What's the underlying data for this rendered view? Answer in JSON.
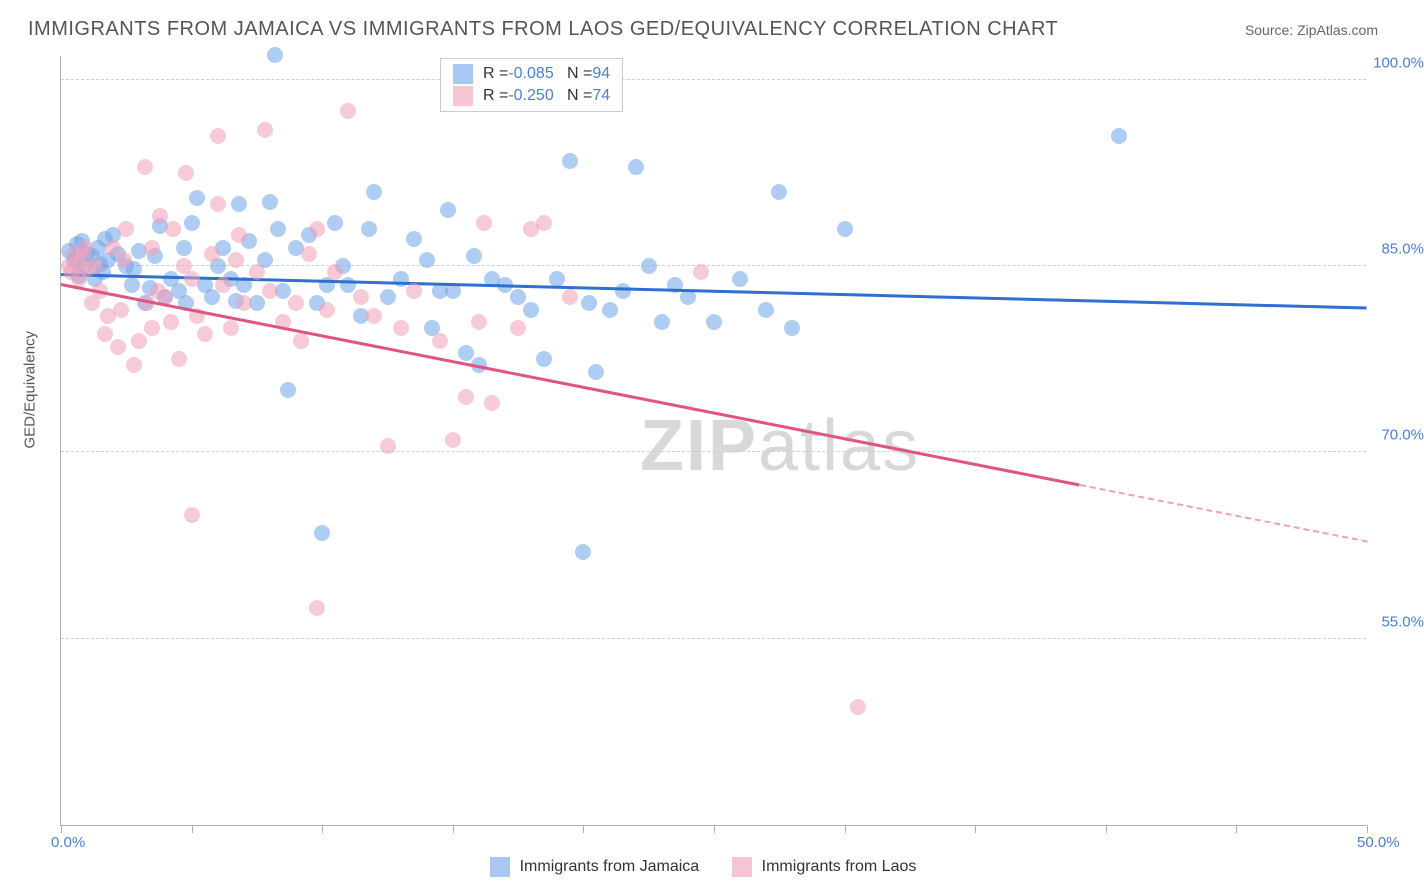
{
  "title": "IMMIGRANTS FROM JAMAICA VS IMMIGRANTS FROM LAOS GED/EQUIVALENCY CORRELATION CHART",
  "source": "Source: ZipAtlas.com",
  "y_axis_label": "GED/Equivalency",
  "watermark": {
    "bold": "ZIP",
    "light": "atlas"
  },
  "chart": {
    "type": "scatter",
    "background_color": "#ffffff",
    "grid_color": "#d0d0d0",
    "axis_color": "#b0b0b0",
    "xlim": [
      0,
      50
    ],
    "ylim": [
      40,
      102
    ],
    "x_tick_labels": [
      {
        "x": 0,
        "label": "0.0%"
      },
      {
        "x": 50,
        "label": "50.0%"
      }
    ],
    "x_ticks": [
      0,
      5,
      10,
      15,
      20,
      25,
      30,
      35,
      40,
      45,
      50
    ],
    "y_ticks": [
      {
        "y": 55,
        "label": "55.0%"
      },
      {
        "y": 70,
        "label": "70.0%"
      },
      {
        "y": 85,
        "label": "85.0%"
      },
      {
        "y": 100,
        "label": "100.0%"
      }
    ],
    "marker_radius": 8,
    "marker_opacity": 0.55,
    "series": [
      {
        "name": "Immigrants from Jamaica",
        "color": "#6fa3e8",
        "line_color": "#2f6fd0",
        "r": "-0.085",
        "n": "94",
        "trend": {
          "x1": 0,
          "y1": 84.5,
          "x2": 50,
          "y2": 81.8,
          "solid_until": 50
        },
        "points": [
          [
            0.3,
            86.2
          ],
          [
            0.5,
            85.5
          ],
          [
            0.6,
            86.8
          ],
          [
            0.7,
            84.2
          ],
          [
            0.8,
            87.0
          ],
          [
            0.9,
            85.0
          ],
          [
            1.0,
            86.0
          ],
          [
            1.2,
            85.8
          ],
          [
            1.3,
            84.0
          ],
          [
            1.4,
            86.5
          ],
          [
            1.5,
            85.2
          ],
          [
            1.6,
            84.5
          ],
          [
            1.7,
            87.2
          ],
          [
            1.8,
            85.5
          ],
          [
            2.0,
            87.5
          ],
          [
            2.2,
            86.0
          ],
          [
            2.5,
            85.0
          ],
          [
            2.7,
            83.5
          ],
          [
            2.8,
            84.8
          ],
          [
            3.0,
            86.2
          ],
          [
            3.2,
            82.0
          ],
          [
            3.4,
            83.2
          ],
          [
            3.6,
            85.8
          ],
          [
            3.8,
            88.2
          ],
          [
            4.0,
            82.5
          ],
          [
            4.2,
            84.0
          ],
          [
            4.5,
            83.0
          ],
          [
            4.7,
            86.5
          ],
          [
            4.8,
            82.0
          ],
          [
            5.0,
            88.5
          ],
          [
            5.2,
            90.5
          ],
          [
            5.5,
            83.5
          ],
          [
            5.8,
            82.5
          ],
          [
            6.0,
            85.0
          ],
          [
            6.2,
            86.5
          ],
          [
            6.5,
            84.0
          ],
          [
            6.7,
            82.2
          ],
          [
            6.8,
            90.0
          ],
          [
            7.0,
            83.5
          ],
          [
            7.2,
            87.0
          ],
          [
            7.5,
            82.0
          ],
          [
            7.8,
            85.5
          ],
          [
            8.0,
            90.2
          ],
          [
            8.2,
            102.0
          ],
          [
            8.3,
            88.0
          ],
          [
            8.5,
            83.0
          ],
          [
            8.7,
            75.0
          ],
          [
            9.0,
            86.5
          ],
          [
            9.5,
            87.5
          ],
          [
            9.8,
            82.0
          ],
          [
            10.0,
            63.5
          ],
          [
            10.2,
            83.5
          ],
          [
            10.5,
            88.5
          ],
          [
            10.8,
            85.0
          ],
          [
            11.0,
            83.5
          ],
          [
            11.5,
            81.0
          ],
          [
            11.8,
            88.0
          ],
          [
            12.0,
            91.0
          ],
          [
            12.5,
            82.5
          ],
          [
            13.0,
            84.0
          ],
          [
            13.5,
            87.2
          ],
          [
            14.0,
            85.5
          ],
          [
            14.2,
            80.0
          ],
          [
            14.5,
            83.0
          ],
          [
            14.8,
            89.5
          ],
          [
            15.0,
            83.0
          ],
          [
            15.5,
            78.0
          ],
          [
            15.8,
            85.8
          ],
          [
            16.0,
            77.0
          ],
          [
            16.5,
            84.0
          ],
          [
            17.0,
            83.5
          ],
          [
            17.5,
            82.5
          ],
          [
            18.0,
            81.5
          ],
          [
            18.5,
            77.5
          ],
          [
            19.0,
            84.0
          ],
          [
            19.5,
            93.5
          ],
          [
            20.0,
            62.0
          ],
          [
            20.2,
            82.0
          ],
          [
            20.5,
            76.5
          ],
          [
            21.0,
            81.5
          ],
          [
            21.5,
            83.0
          ],
          [
            22.0,
            93.0
          ],
          [
            22.5,
            85.0
          ],
          [
            23.0,
            80.5
          ],
          [
            23.5,
            83.5
          ],
          [
            24.0,
            82.5
          ],
          [
            25.0,
            80.5
          ],
          [
            26.0,
            84.0
          ],
          [
            27.0,
            81.5
          ],
          [
            27.5,
            91.0
          ],
          [
            28.0,
            80.0
          ],
          [
            30.0,
            88.0
          ],
          [
            40.5,
            95.5
          ]
        ]
      },
      {
        "name": "Immigrants from Laos",
        "color": "#f0a0b8",
        "line_color": "#e05580",
        "r": "-0.250",
        "n": "74",
        "trend": {
          "x1": 0,
          "y1": 83.7,
          "x2": 50,
          "y2": 63.0,
          "solid_until": 39
        },
        "points": [
          [
            0.3,
            85.0
          ],
          [
            0.4,
            84.5
          ],
          [
            0.5,
            86.0
          ],
          [
            0.6,
            85.2
          ],
          [
            0.7,
            84.0
          ],
          [
            0.8,
            85.8
          ],
          [
            0.9,
            86.5
          ],
          [
            1.0,
            84.8
          ],
          [
            1.2,
            82.0
          ],
          [
            1.3,
            85.0
          ],
          [
            1.5,
            83.0
          ],
          [
            1.7,
            79.5
          ],
          [
            1.8,
            81.0
          ],
          [
            2.0,
            86.5
          ],
          [
            2.2,
            78.5
          ],
          [
            2.3,
            81.5
          ],
          [
            2.4,
            85.5
          ],
          [
            2.5,
            88.0
          ],
          [
            2.8,
            77.0
          ],
          [
            3.0,
            79.0
          ],
          [
            3.2,
            93.0
          ],
          [
            3.3,
            82.0
          ],
          [
            3.5,
            80.0
          ],
          [
            3.5,
            86.5
          ],
          [
            3.7,
            83.0
          ],
          [
            3.8,
            89.0
          ],
          [
            4.0,
            82.5
          ],
          [
            4.2,
            80.5
          ],
          [
            4.3,
            88.0
          ],
          [
            4.5,
            77.5
          ],
          [
            4.7,
            85.0
          ],
          [
            4.8,
            92.5
          ],
          [
            5.0,
            84.0
          ],
          [
            5.0,
            65.0
          ],
          [
            5.2,
            81.0
          ],
          [
            5.5,
            79.5
          ],
          [
            5.8,
            86.0
          ],
          [
            6.0,
            95.5
          ],
          [
            6.0,
            90.0
          ],
          [
            6.2,
            83.5
          ],
          [
            6.5,
            80.0
          ],
          [
            6.7,
            85.5
          ],
          [
            6.8,
            87.5
          ],
          [
            7.0,
            82.0
          ],
          [
            7.5,
            84.5
          ],
          [
            7.8,
            96.0
          ],
          [
            8.0,
            83.0
          ],
          [
            8.5,
            80.5
          ],
          [
            9.0,
            82.0
          ],
          [
            9.2,
            79.0
          ],
          [
            9.5,
            86.0
          ],
          [
            9.8,
            88.0
          ],
          [
            9.8,
            57.5
          ],
          [
            10.2,
            81.5
          ],
          [
            10.5,
            84.5
          ],
          [
            11.0,
            97.5
          ],
          [
            11.5,
            82.5
          ],
          [
            12.0,
            81.0
          ],
          [
            12.5,
            70.5
          ],
          [
            13.0,
            80.0
          ],
          [
            13.5,
            83.0
          ],
          [
            14.5,
            79.0
          ],
          [
            15.0,
            71.0
          ],
          [
            15.5,
            74.5
          ],
          [
            16.0,
            80.5
          ],
          [
            16.2,
            88.5
          ],
          [
            16.5,
            74.0
          ],
          [
            17.5,
            80.0
          ],
          [
            18.0,
            88.0
          ],
          [
            18.5,
            88.5
          ],
          [
            19.5,
            82.5
          ],
          [
            24.5,
            84.5
          ],
          [
            30.5,
            49.5
          ]
        ]
      }
    ]
  },
  "legend_labels": {
    "jamaica": "Immigrants from Jamaica",
    "laos": "Immigrants from Laos"
  }
}
